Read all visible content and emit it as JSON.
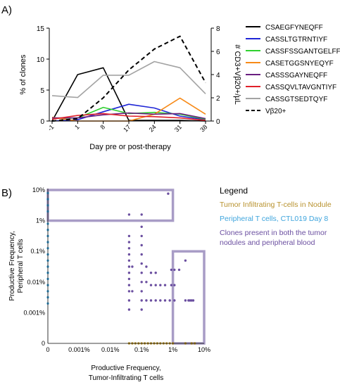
{
  "chart_data": [
    {
      "type": "line",
      "panel_label": "A)",
      "x": [
        "-1",
        "1",
        "8",
        "17",
        "24",
        "31",
        "38"
      ],
      "xlabel": "Day pre or post-therapy",
      "ylabel": "% of clones",
      "ylim": [
        0,
        15
      ],
      "y_ticks": [
        "0",
        "5",
        "10",
        "15"
      ],
      "y2label": "# CD3+Vβ20+/µL",
      "y2lim": [
        0,
        8
      ],
      "y2_ticks": [
        "0",
        "2",
        "4",
        "6",
        "8"
      ],
      "legend_position": "right",
      "series": [
        {
          "name": "CSAEGFYNEQFF",
          "color": "#000000",
          "axis": "left",
          "dashed": false,
          "values": [
            0,
            7.5,
            8.6,
            0.1,
            0.1,
            0.1,
            0
          ]
        },
        {
          "name": "CASSLTGTRNTIYF",
          "color": "#1f26d6",
          "axis": "left",
          "dashed": false,
          "values": [
            0,
            0.2,
            1.5,
            2.7,
            2.1,
            0.8,
            0.2
          ]
        },
        {
          "name": "CASSFSSGANTGELFF",
          "color": "#2fd02f",
          "axis": "left",
          "dashed": false,
          "values": [
            0.4,
            0.5,
            2.2,
            1.2,
            1.4,
            1.1,
            0.3
          ]
        },
        {
          "name": "CASETGGSNYEQYF",
          "color": "#f78a18",
          "axis": "left",
          "dashed": false,
          "values": [
            0.6,
            0,
            0,
            0,
            1.1,
            3.7,
            1.1
          ]
        },
        {
          "name": "CASSSGAYNEQFF",
          "color": "#6a1f80",
          "axis": "left",
          "dashed": false,
          "values": [
            0.5,
            0.5,
            1,
            1.3,
            1.1,
            1.2,
            0.4
          ]
        },
        {
          "name": "CASSQVLTAVGNTIYF",
          "color": "#e0202a",
          "axis": "left",
          "dashed": false,
          "values": [
            0.3,
            0.9,
            1.2,
            0.8,
            0.7,
            0.5,
            0.1
          ]
        },
        {
          "name": "CASSGTSEDTQYF",
          "color": "#a3a3a3",
          "axis": "left",
          "dashed": false,
          "values": [
            4.1,
            3.8,
            7.4,
            7.4,
            9.6,
            8.6,
            4.4
          ]
        },
        {
          "name": "Vβ20+",
          "color": "#000000",
          "axis": "right",
          "dashed": true,
          "values": [
            0,
            0.2,
            2,
            4.4,
            6.2,
            7.3,
            3.3
          ]
        }
      ]
    },
    {
      "type": "scatter",
      "panel_label": "B)",
      "xlabel": [
        "Productive Frequency,",
        "Tumor-Infiltrating T cells"
      ],
      "ylabel": [
        "Productive Frequency,",
        "Peripheral T cells"
      ],
      "scale": "log",
      "x_ticks": [
        {
          "label": "0",
          "log": -6
        },
        {
          "label": "0.001%",
          "log": -5
        },
        {
          "label": "0.01%",
          "log": -4
        },
        {
          "label": "0.1%",
          "log": -3
        },
        {
          "label": "1%",
          "log": -2
        },
        {
          "label": "10%",
          "log": -1
        }
      ],
      "y_ticks": [
        {
          "label": "0",
          "log": -6
        },
        {
          "label": "0.001%",
          "log": -5
        },
        {
          "label": "0.01%",
          "log": -4
        },
        {
          "label": "0.1%",
          "log": -3
        },
        {
          "label": "1%",
          "log": -2
        },
        {
          "label": "10%",
          "log": -1
        }
      ],
      "legend_title": "Legend",
      "legend_position": "right",
      "legend": [
        {
          "label": "Tumor Infiltrating T-cells in Nodule",
          "color": "#b8922e"
        },
        {
          "label": "Peripheral T cells, CTL019 Day 8",
          "color": "#3fa5dd"
        },
        {
          "label": "Clones present in both the tumor nodules and peripheral blood",
          "color": "#6b4fa0"
        }
      ],
      "highlight_boxes": [
        {
          "x_log": [
            -6,
            -2
          ],
          "y_log": [
            -2,
            -1
          ]
        },
        {
          "x_log": [
            -2,
            -1
          ],
          "y_log": [
            -6,
            -3
          ]
        }
      ],
      "groups": [
        {
          "name": "Tumor Infiltrating T-cells in Nodule",
          "color": "#b8922e",
          "points": [
            [
              -3.4,
              -6
            ],
            [
              -3.3,
              -6
            ],
            [
              -3.2,
              -6
            ],
            [
              -3.1,
              -6
            ],
            [
              -3,
              -6
            ],
            [
              -2.9,
              -6
            ],
            [
              -2.8,
              -6
            ],
            [
              -2.7,
              -6
            ],
            [
              -2.6,
              -6
            ],
            [
              -2.5,
              -6
            ],
            [
              -2.4,
              -6
            ],
            [
              -2.3,
              -6
            ],
            [
              -2.2,
              -6
            ],
            [
              -2.1,
              -6
            ],
            [
              -2,
              -6
            ],
            [
              -1.6,
              -6
            ],
            [
              -1.4,
              -6
            ],
            [
              -1.3,
              -6
            ]
          ]
        },
        {
          "name": "Peripheral T cells, CTL019 Day 8",
          "color": "#3fa5dd",
          "points": [
            [
              -6,
              -1.1
            ],
            [
              -6,
              -1.3
            ],
            [
              -6,
              -1.5
            ],
            [
              -6,
              -1.7
            ],
            [
              -6,
              -2.1
            ],
            [
              -6,
              -2.3
            ],
            [
              -6,
              -2.5
            ],
            [
              -6,
              -2.7
            ],
            [
              -6,
              -2.9
            ],
            [
              -6,
              -3.1
            ],
            [
              -6,
              -3.3
            ],
            [
              -6,
              -3.5
            ],
            [
              -6,
              -3.7
            ],
            [
              -6,
              -3.9
            ],
            [
              -6,
              -4.1
            ],
            [
              -6,
              -4.3
            ],
            [
              -6,
              -4.5
            ],
            [
              -6,
              -4.7
            ]
          ]
        },
        {
          "name": "Clones present in both the tumor nodules and peripheral blood",
          "color": "#6b4fa0",
          "points": [
            [
              -2.15,
              -1.12
            ],
            [
              -3.4,
              -1.8
            ],
            [
              -3,
              -1.8
            ],
            [
              -3,
              -2.2
            ],
            [
              -3,
              -2.5
            ],
            [
              -3,
              -2.8
            ],
            [
              -3.4,
              -2.5
            ],
            [
              -3.4,
              -2.7
            ],
            [
              -3.4,
              -2.9
            ],
            [
              -3.4,
              -3.1
            ],
            [
              -3.4,
              -3.3
            ],
            [
              -3.4,
              -3.5
            ],
            [
              -3.4,
              -3.7
            ],
            [
              -3.4,
              -3.9
            ],
            [
              -3.4,
              -4.1
            ],
            [
              -3.4,
              -4.3
            ],
            [
              -3.4,
              -4.6
            ],
            [
              -3.4,
              -4.9
            ],
            [
              -3.3,
              -3.5
            ],
            [
              -3.3,
              -4.3
            ],
            [
              -3,
              -3.1
            ],
            [
              -3,
              -3.4
            ],
            [
              -3,
              -3.7
            ],
            [
              -3,
              -4
            ],
            [
              -3,
              -4.3
            ],
            [
              -3,
              -4.6
            ],
            [
              -3,
              -4.9
            ],
            [
              -2.85,
              -3.5
            ],
            [
              -2.85,
              -4
            ],
            [
              -2.85,
              -4.6
            ],
            [
              -2.7,
              -3.7
            ],
            [
              -2.7,
              -4.1
            ],
            [
              -2.7,
              -4.6
            ],
            [
              -2.55,
              -3.7
            ],
            [
              -2.55,
              -4.1
            ],
            [
              -2.55,
              -4.6
            ],
            [
              -2.4,
              -4.1
            ],
            [
              -2.4,
              -4.6
            ],
            [
              -2.25,
              -4.1
            ],
            [
              -2.25,
              -4.6
            ],
            [
              -2.1,
              -4.6
            ],
            [
              -2.05,
              -3.6
            ],
            [
              -2.05,
              -4.1
            ],
            [
              -1.95,
              -3.6
            ],
            [
              -1.95,
              -4.1
            ],
            [
              -1.95,
              -4.6
            ],
            [
              -1.8,
              -3.6
            ],
            [
              -1.6,
              -3.3
            ],
            [
              -1.6,
              -4.6
            ],
            [
              -1.5,
              -4.6
            ],
            [
              -1.45,
              -4.6
            ],
            [
              -1.4,
              -4.6
            ],
            [
              -1.35,
              -4.6
            ]
          ]
        }
      ]
    }
  ]
}
